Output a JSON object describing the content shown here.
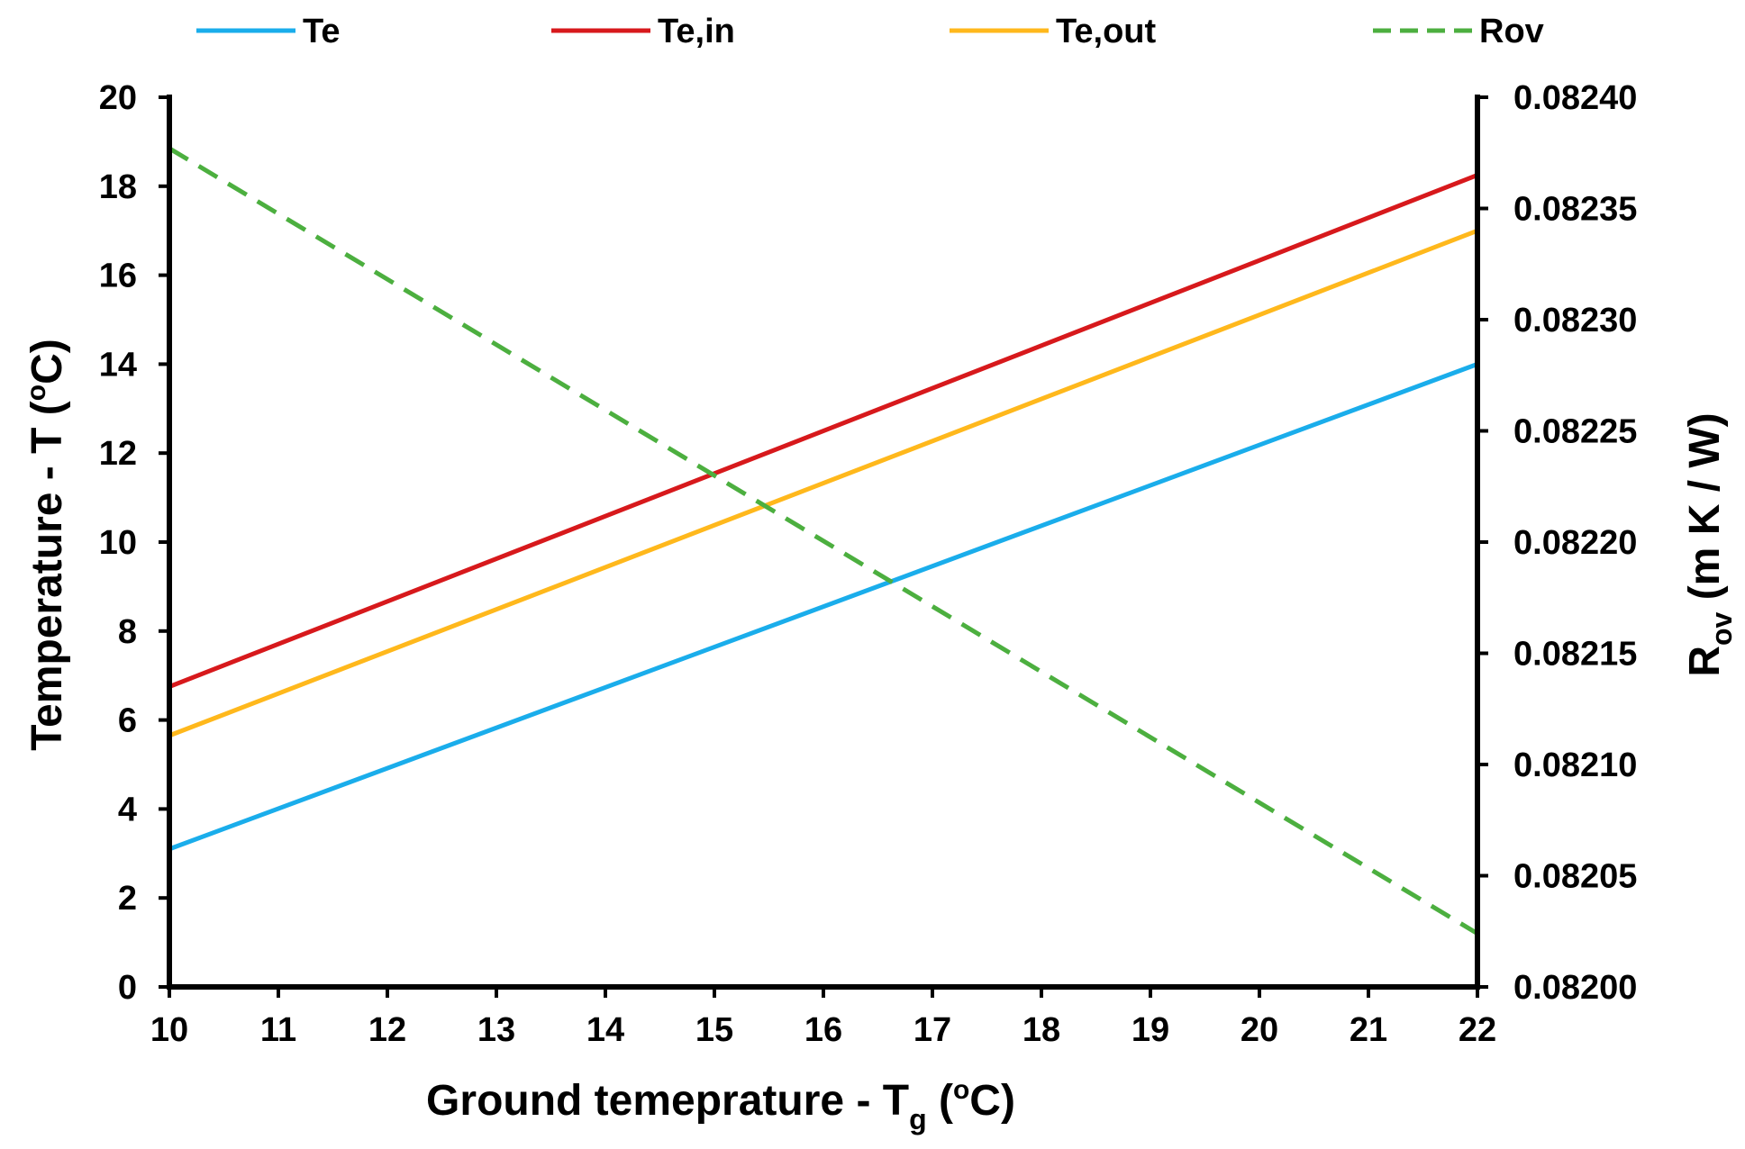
{
  "chart_data": {
    "type": "line",
    "x": [
      10,
      22
    ],
    "xlabel": "Ground temeprature - T",
    "xlabel_sub": "g",
    "ylabel_left": "Temperature - T (",
    "ylabel_right_main": "R",
    "ylabel_right_sub": "ov",
    "ylabel_right_units": "(m K / W)",
    "unit_sup": "o",
    "unit_letter": "C",
    "unit_close": ")",
    "xlim": [
      10,
      22
    ],
    "ylim_left": [
      0,
      20
    ],
    "ylim_right": [
      0.082,
      0.0824
    ],
    "x_ticks": [
      "10",
      "11",
      "12",
      "13",
      "14",
      "15",
      "16",
      "17",
      "18",
      "19",
      "20",
      "21",
      "22"
    ],
    "y_left_ticks": [
      "0",
      "2",
      "4",
      "6",
      "8",
      "10",
      "12",
      "14",
      "16",
      "18",
      "20"
    ],
    "y_right_ticks": [
      "0.08200",
      "0.08205",
      "0.08210",
      "0.08215",
      "0.08220",
      "0.08225",
      "0.08230",
      "0.08235",
      "0.08240"
    ],
    "series": [
      {
        "name": "Te",
        "axis": "left",
        "color": "#1AADEB",
        "dash": false,
        "values": [
          3.1,
          14.0
        ]
      },
      {
        "name": "Te,in",
        "axis": "left",
        "color": "#D7191C",
        "dash": false,
        "values": [
          6.75,
          18.25
        ]
      },
      {
        "name": "Te,out",
        "axis": "left",
        "color": "#FFB81C",
        "dash": false,
        "values": [
          5.65,
          17.0
        ]
      },
      {
        "name": "Rov",
        "axis": "right",
        "color": "#4CAF3F",
        "dash": true,
        "values": [
          0.082377,
          0.082024
        ]
      }
    ],
    "legend": "top",
    "grid": false
  }
}
